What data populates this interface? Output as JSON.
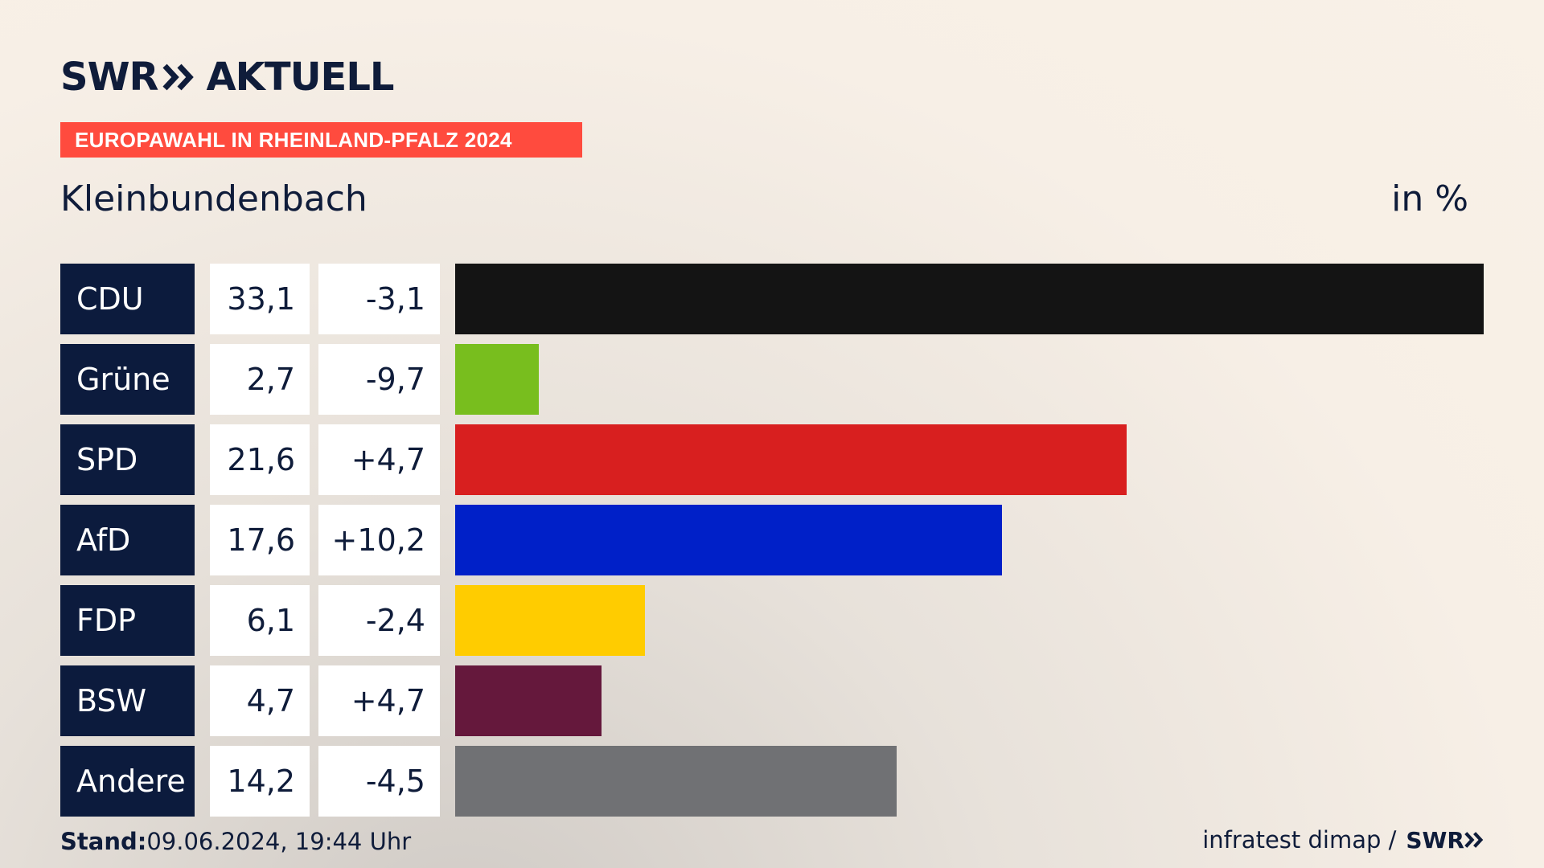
{
  "header": {
    "logo_left": "SWR",
    "logo_right": "AKTUELL",
    "banner": "EUROPAWAHL IN RHEINLAND-PFALZ 2024"
  },
  "chart_data": {
    "type": "bar",
    "subtitle": "Kleinbundenbach",
    "unit": "in %",
    "xlim": [
      0,
      33.1
    ],
    "categories": [
      "CDU",
      "Grüne",
      "SPD",
      "AfD",
      "FDP",
      "BSW",
      "Andere"
    ],
    "values": [
      33.1,
      2.7,
      21.6,
      17.6,
      6.1,
      4.7,
      14.2
    ],
    "value_labels": [
      "33,1",
      "2,7",
      "21,6",
      "17,6",
      "6,1",
      "4,7",
      "14,2"
    ],
    "diff_labels": [
      "-3,1",
      "-9,7",
      "+4,7",
      "+10,2",
      "-2,4",
      "+4,7",
      "-4,5"
    ],
    "colors": [
      "#141414",
      "#78be1e",
      "#d81f1f",
      "#0020c8",
      "#ffcc00",
      "#65183c",
      "#707174"
    ]
  },
  "footer": {
    "stand_label": "Stand:",
    "stand_value": "09.06.2024, 19:44 Uhr",
    "source": "infratest dimap /",
    "source_logo": "SWR"
  }
}
